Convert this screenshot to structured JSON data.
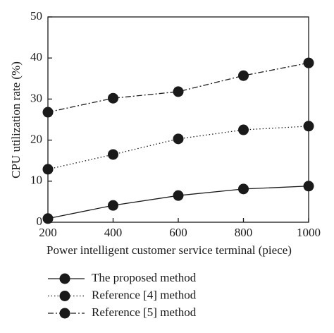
{
  "chart_data": {
    "type": "line",
    "x_label": "Power intelligent customer service terminal (piece)",
    "y_label": "CPU utilization rate (%)",
    "x": [
      200,
      400,
      600,
      800,
      1000
    ],
    "xlim": [
      200,
      1000
    ],
    "xticks": [
      200,
      400,
      600,
      800,
      1000
    ],
    "ylim": [
      0,
      50
    ],
    "yticks": [
      0,
      10,
      20,
      30,
      40,
      50
    ],
    "legend": "bottom",
    "series": [
      {
        "name": "The proposed method",
        "color": "#1a1a1a",
        "dash": "solid",
        "values": [
          0.9,
          4.1,
          6.5,
          8.1,
          8.8
        ]
      },
      {
        "name": "Reference [4] method",
        "color": "#1a1a1a",
        "dash": "dotted",
        "values": [
          12.9,
          16.5,
          20.3,
          22.5,
          23.4
        ]
      },
      {
        "name": "Reference [5] method",
        "color": "#1a1a1a",
        "dash": "dashdot",
        "values": [
          26.8,
          30.2,
          31.8,
          35.7,
          38.8
        ]
      }
    ]
  }
}
